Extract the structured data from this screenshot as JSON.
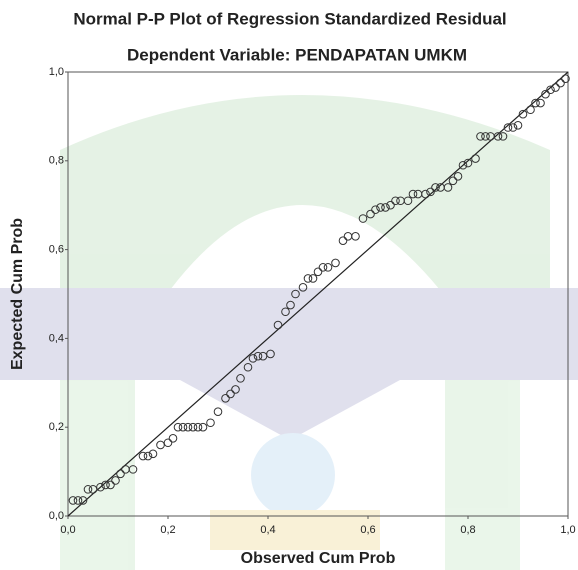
{
  "chart_data": {
    "type": "scatter",
    "title": "Normal P-P Plot of Regression Standardized Residual",
    "subtitle": "Dependent Variable: PENDAPATAN UMKM",
    "x_label": "Observed Cum Prob",
    "y_label": "Expected Cum Prob",
    "color": "#333333",
    "grid": false,
    "reference_line": true,
    "xlim": [
      0,
      1
    ],
    "ylim": [
      0,
      1
    ],
    "xticks": [
      {
        "value": 0,
        "label": "0,0"
      },
      {
        "value": 0.2,
        "label": "0,2"
      },
      {
        "value": 0.4,
        "label": "0,4"
      },
      {
        "value": 0.6,
        "label": "0,6"
      },
      {
        "value": 0.8,
        "label": "0,8"
      },
      {
        "value": 1,
        "label": "1,0"
      }
    ],
    "yticks": [
      {
        "value": 0,
        "label": "0,0"
      },
      {
        "value": 0.2,
        "label": "0,2"
      },
      {
        "value": 0.4,
        "label": "0,4"
      },
      {
        "value": 0.6,
        "label": "0,6"
      },
      {
        "value": 0.8,
        "label": "0,8"
      },
      {
        "value": 1,
        "label": "1,0"
      }
    ],
    "x": [
      0.01,
      0.02,
      0.03,
      0.04,
      0.05,
      0.065,
      0.075,
      0.085,
      0.095,
      0.105,
      0.115,
      0.13,
      0.15,
      0.16,
      0.17,
      0.185,
      0.2,
      0.21,
      0.22,
      0.23,
      0.24,
      0.25,
      0.26,
      0.27,
      0.285,
      0.3,
      0.315,
      0.325,
      0.335,
      0.345,
      0.36,
      0.37,
      0.38,
      0.39,
      0.405,
      0.42,
      0.435,
      0.445,
      0.455,
      0.47,
      0.48,
      0.49,
      0.5,
      0.51,
      0.52,
      0.535,
      0.55,
      0.56,
      0.575,
      0.59,
      0.605,
      0.615,
      0.625,
      0.635,
      0.645,
      0.655,
      0.665,
      0.68,
      0.69,
      0.7,
      0.715,
      0.725,
      0.735,
      0.745,
      0.76,
      0.77,
      0.78,
      0.79,
      0.8,
      0.815,
      0.825,
      0.835,
      0.845,
      0.86,
      0.87,
      0.88,
      0.89,
      0.9,
      0.91,
      0.925,
      0.935,
      0.945,
      0.955,
      0.965,
      0.975,
      0.985,
      0.995
    ],
    "values": [
      0.035,
      0.035,
      0.035,
      0.06,
      0.06,
      0.065,
      0.07,
      0.07,
      0.08,
      0.095,
      0.105,
      0.105,
      0.135,
      0.135,
      0.14,
      0.16,
      0.165,
      0.175,
      0.2,
      0.2,
      0.2,
      0.2,
      0.2,
      0.2,
      0.21,
      0.235,
      0.265,
      0.275,
      0.285,
      0.31,
      0.335,
      0.355,
      0.36,
      0.36,
      0.365,
      0.43,
      0.46,
      0.475,
      0.5,
      0.515,
      0.535,
      0.535,
      0.55,
      0.56,
      0.56,
      0.57,
      0.62,
      0.63,
      0.63,
      0.67,
      0.68,
      0.69,
      0.695,
      0.695,
      0.7,
      0.71,
      0.71,
      0.71,
      0.725,
      0.725,
      0.725,
      0.73,
      0.74,
      0.74,
      0.74,
      0.755,
      0.765,
      0.79,
      0.795,
      0.805,
      0.855,
      0.855,
      0.855,
      0.855,
      0.855,
      0.875,
      0.875,
      0.88,
      0.905,
      0.915,
      0.93,
      0.93,
      0.95,
      0.96,
      0.965,
      0.975,
      0.985
    ]
  }
}
